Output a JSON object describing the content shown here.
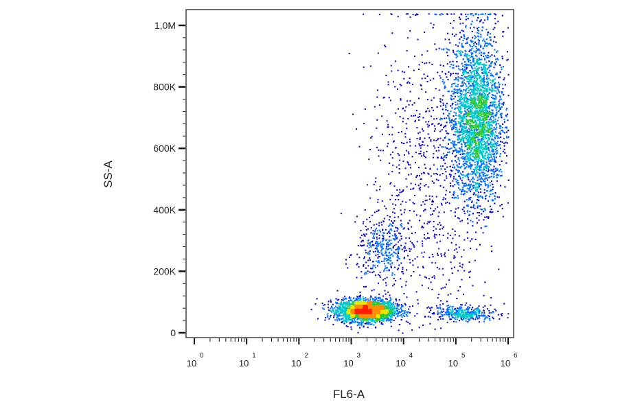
{
  "chart_data": {
    "type": "scatter",
    "subtype": "flow-cytometry-density-dot-plot",
    "title": "",
    "xlabel": "FL6-A",
    "ylabel": "SS-A",
    "x_scale": "log",
    "xlim": [
      1,
      1000000
    ],
    "ylim": [
      0,
      1050000
    ],
    "x_ticks": [
      {
        "value": 1,
        "base": "10",
        "exp": "0"
      },
      {
        "value": 10,
        "base": "10",
        "exp": "1"
      },
      {
        "value": 100,
        "base": "10",
        "exp": "2"
      },
      {
        "value": 1000,
        "base": "10",
        "exp": "3"
      },
      {
        "value": 10000,
        "base": "10",
        "exp": "4"
      },
      {
        "value": 100000,
        "base": "10",
        "exp": "5"
      },
      {
        "value": 1000000,
        "base": "10",
        "exp": "6"
      }
    ],
    "y_ticks": [
      {
        "value": 0,
        "label": "0"
      },
      {
        "value": 200000,
        "label": "200K"
      },
      {
        "value": 400000,
        "label": "400K"
      },
      {
        "value": 600000,
        "label": "600K"
      },
      {
        "value": 800000,
        "label": "800K"
      },
      {
        "value": 1000000,
        "label": "1,0M"
      }
    ],
    "grid": false,
    "legend": "none",
    "colormap": [
      "#0000c8",
      "#0070ff",
      "#00c8c8",
      "#32c832",
      "#e6e600",
      "#ff8c00",
      "#ff1e00"
    ],
    "populations": [
      {
        "center_x": 1900,
        "center_y": 75000,
        "log_sd_x": 0.28,
        "sd_y": 18000,
        "share": 0.3,
        "peak_density": "high"
      },
      {
        "center_x": 4000,
        "center_y": 270000,
        "log_sd_x": 0.25,
        "sd_y": 50000,
        "share": 0.04,
        "peak_density": "low"
      },
      {
        "center_x": 250000,
        "center_y": 700000,
        "log_sd_x": 0.25,
        "sd_y": 140000,
        "share": 0.52,
        "peak_density": "medium"
      },
      {
        "center_x": 150000,
        "center_y": 65000,
        "log_sd_x": 0.3,
        "sd_y": 12000,
        "share": 0.04,
        "peak_density": "low"
      },
      {
        "center_x": 30000,
        "center_y": 500000,
        "log_sd_x": 0.6,
        "sd_y": 280000,
        "share": 0.1,
        "peak_density": "sparse"
      }
    ]
  }
}
